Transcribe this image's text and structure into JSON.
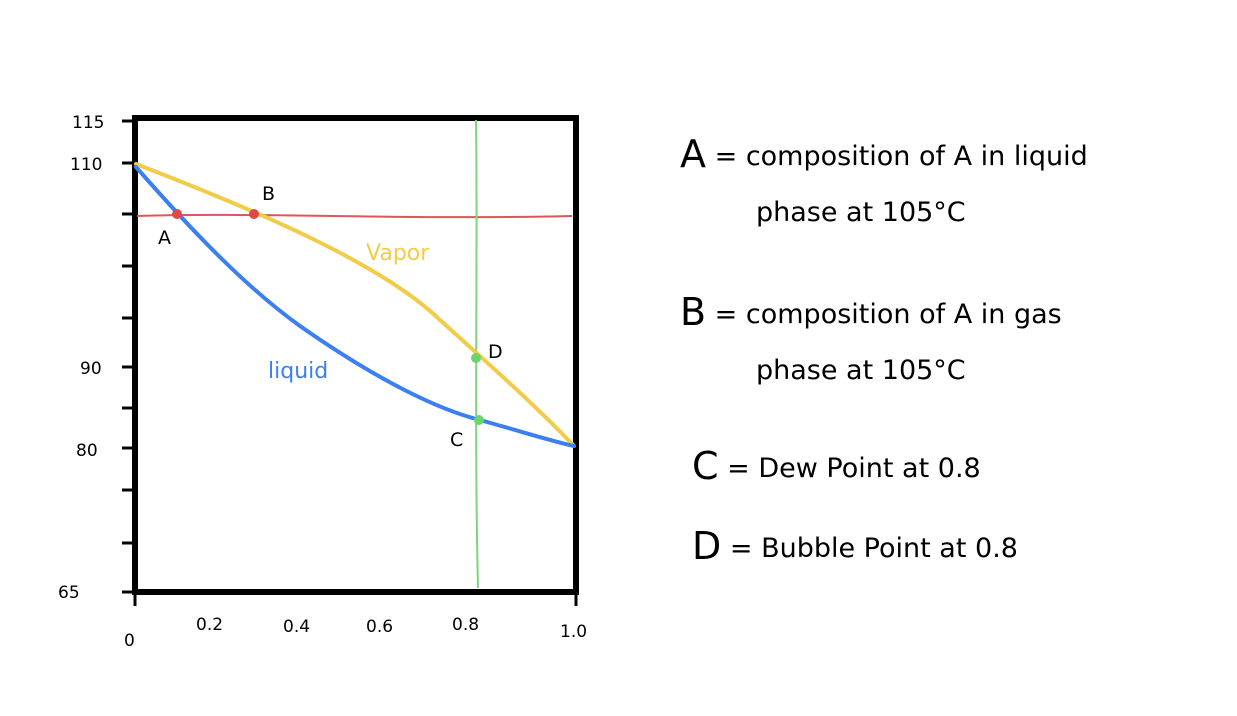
{
  "axes": {
    "y_ticks": [
      "115",
      "110",
      "90",
      "80",
      "65"
    ],
    "x_ticks": [
      "0",
      "0.2",
      "0.4",
      "0.6",
      "0.8",
      "1.0"
    ]
  },
  "regions": {
    "vapor": "Vapor",
    "liquid": "liquid"
  },
  "points": {
    "A": "A",
    "B": "B",
    "C": "C",
    "D": "D"
  },
  "colors": {
    "liquid_curve": "#3b7ff0",
    "vapor_curve": "#f2cc48",
    "isotherm_line": "#e05555",
    "composition_line": "#7fd47f",
    "point_red": "#e04848",
    "point_green": "#6cd46c"
  },
  "notes": [
    {
      "key": "A",
      "eq": "=",
      "line1": "composition of A in liquid",
      "line2": "phase at 105°C"
    },
    {
      "key": "B",
      "eq": "=",
      "line1": "composition of A in gas",
      "line2": "phase at 105°C"
    },
    {
      "key": "C",
      "eq": "=",
      "line1": "Dew Point at 0.8",
      "line2": ""
    },
    {
      "key": "D",
      "eq": "=",
      "line1": "Bubble Point at 0.8",
      "line2": ""
    }
  ]
}
